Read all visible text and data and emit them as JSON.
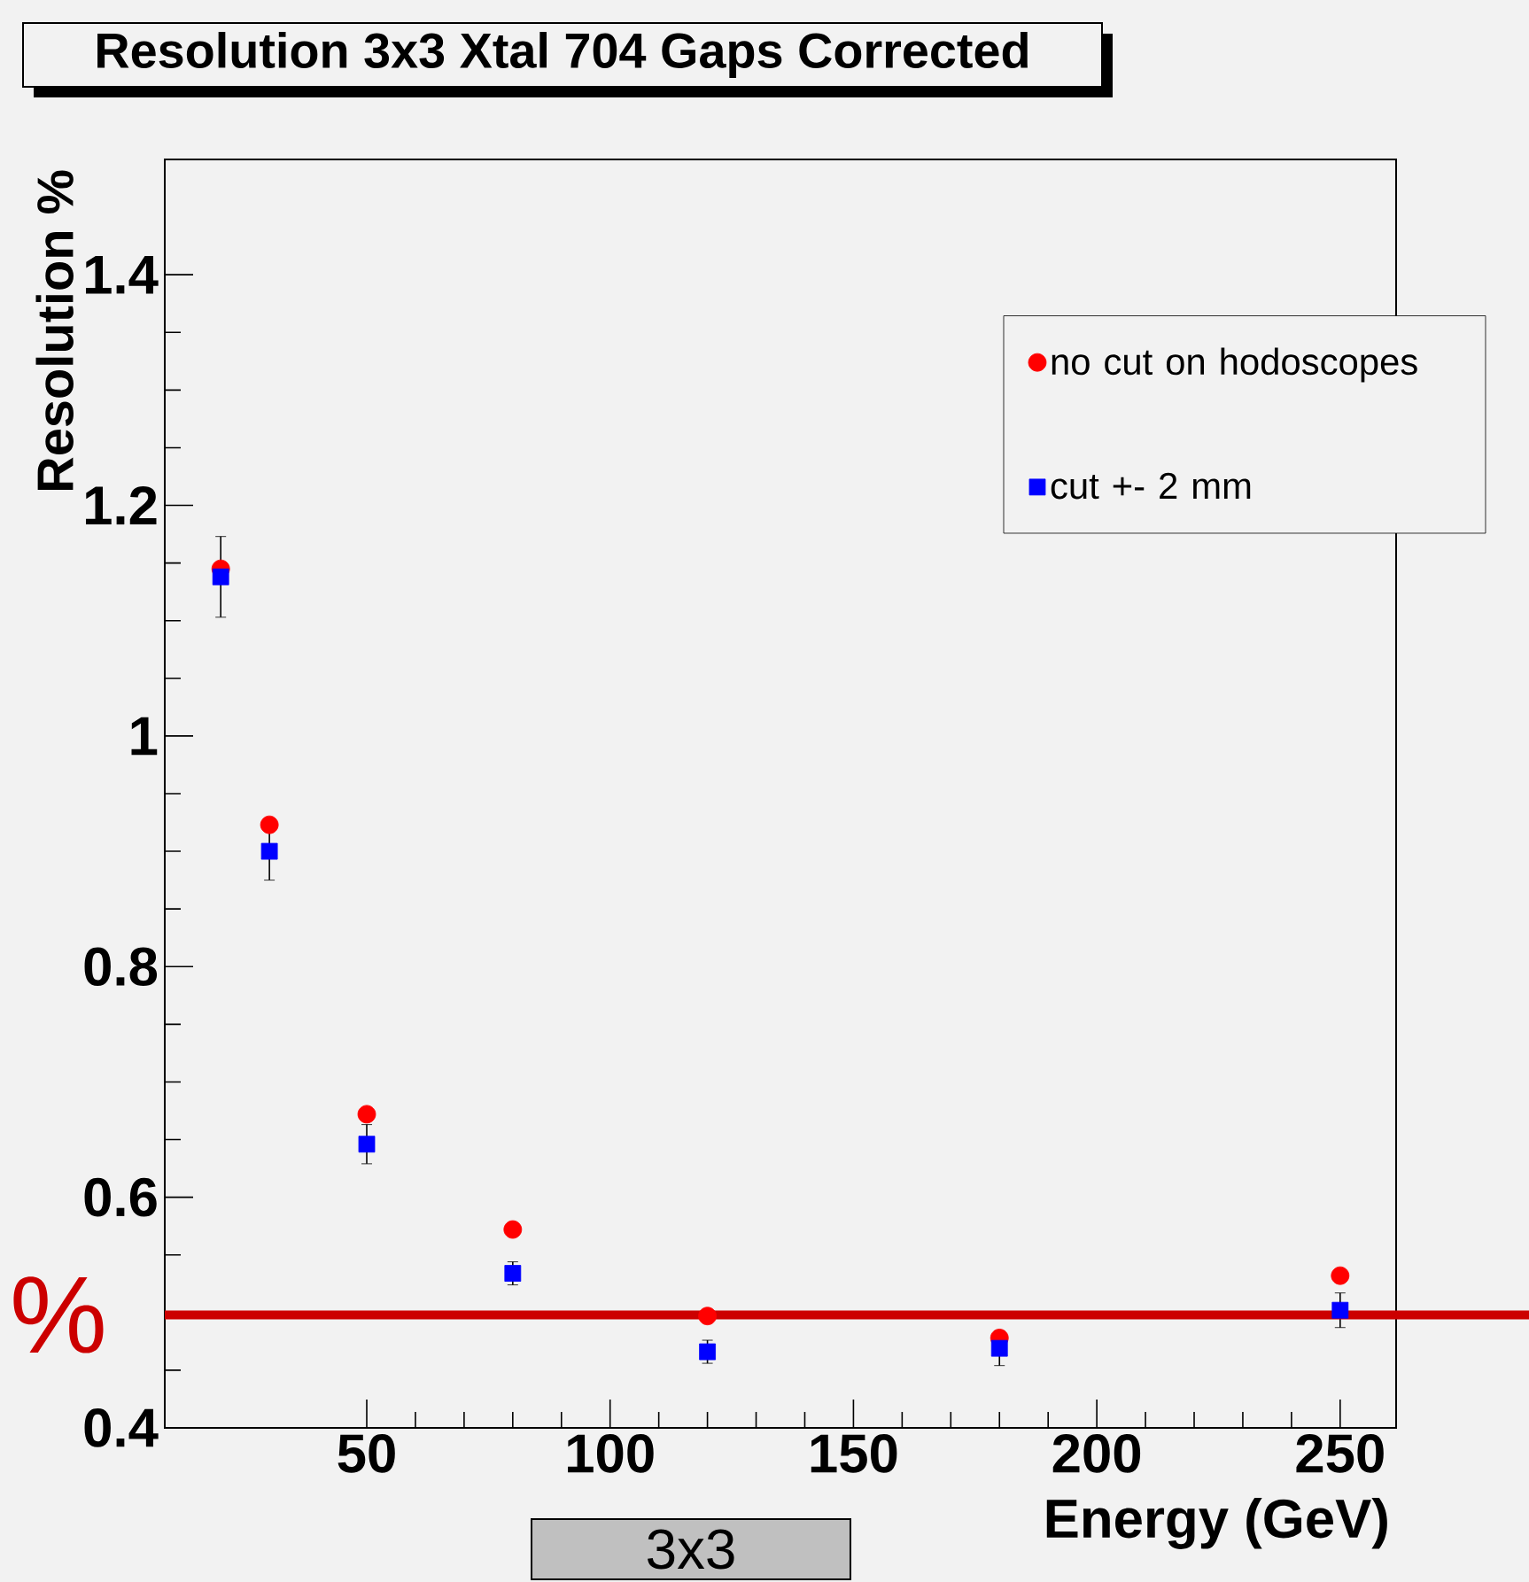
{
  "chart_data": {
    "type": "scatter",
    "title": "Resolution 3x3 Xtal 704 Gaps Corrected",
    "xlabel": "Energy (GeV)",
    "ylabel": "Resolution %",
    "x": [
      20,
      30,
      50,
      80,
      120,
      180,
      250
    ],
    "series": [
      {
        "name": "no cut on hodoscopes",
        "color": "#ff0000",
        "marker": "circle",
        "values": [
          1.145,
          0.923,
          0.672,
          0.572,
          0.497,
          0.478,
          0.532
        ]
      },
      {
        "name": "cut +- 2 mm",
        "color": "#0000ff",
        "marker": "square",
        "values": [
          1.138,
          0.9,
          0.646,
          0.534,
          0.466,
          0.469,
          0.502
        ],
        "errors": [
          0.035,
          0.025,
          0.017,
          0.01,
          0.01,
          0.015,
          0.015
        ]
      }
    ],
    "xlim": [
      8.5,
      261.5
    ],
    "ylim": [
      0.4,
      1.5
    ],
    "xticks": [
      50,
      100,
      150,
      200,
      250
    ],
    "yticks": [
      0.4,
      0.6,
      0.8,
      1,
      1.2,
      1.4
    ],
    "ref_lines": [
      {
        "axis": "y",
        "value": 0.498,
        "label": "%",
        "color": "#cc0000",
        "line_style": "solid"
      }
    ],
    "annotations": [
      "3x3"
    ],
    "legend": "top right",
    "grid": false
  }
}
